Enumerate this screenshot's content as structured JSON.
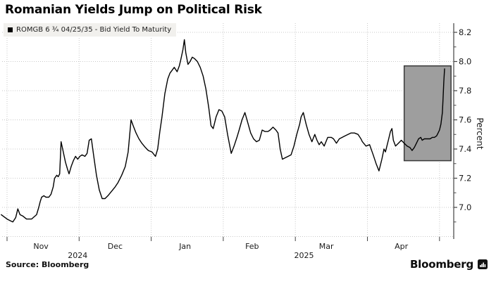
{
  "header": {
    "title": "Romanian Yields Jump on Political Risk"
  },
  "legend": {
    "swatch_color": "#000000",
    "label": "ROMGB 6 ¾ 04/25/35 - Bid Yield To Maturity"
  },
  "footer": {
    "source": "Source: Bloomberg",
    "brand_wordmark": "Bloomberg"
  },
  "chart_data": {
    "type": "line",
    "title": "Romanian Yields Jump on Political Risk",
    "ylabel": "Percent",
    "grid": "dotted",
    "legend_position": "top-left",
    "x_axis": {
      "unit": "months since 2024-11-01",
      "range_mu": [
        -0.08,
        6.2
      ],
      "month_boundary_ticks_mu": [
        0,
        1,
        2,
        3,
        4,
        5,
        6
      ],
      "month_labels": [
        {
          "label": "Nov",
          "mu": 0.47
        },
        {
          "label": "Dec",
          "mu": 1.5
        },
        {
          "label": "Jan",
          "mu": 2.47
        },
        {
          "label": "Feb",
          "mu": 3.4
        },
        {
          "label": "Mar",
          "mu": 4.43
        },
        {
          "label": "Apr",
          "mu": 5.47
        }
      ],
      "year_labels": [
        {
          "label": "2024",
          "mu": 0.98
        },
        {
          "label": "2025",
          "mu": 4.12
        }
      ]
    },
    "y_axis": {
      "label": "Percent",
      "side": "right",
      "range": [
        6.79,
        8.26
      ],
      "labeled_ticks": [
        8.2,
        8.0,
        7.8,
        7.6,
        7.4,
        7.2,
        7.0
      ],
      "minor_ticks": [
        8.1,
        7.9,
        7.7,
        7.5,
        7.3,
        7.1,
        6.9
      ],
      "gridline_values": [
        8.2,
        8.0,
        7.8,
        7.6,
        7.4,
        7.2,
        7.0,
        6.8
      ]
    },
    "highlight_box": {
      "x0_mu": 5.51,
      "x1_mu": 6.16,
      "y0": 7.32,
      "y1": 7.97,
      "fill": "#9e9e9e",
      "stroke": "#3a3a3a"
    },
    "colors": {
      "line": "#000000",
      "grid": "#c9c9c9",
      "axis": "#444444",
      "text": "#1a1a1a",
      "legend_bg": "#f1f0ed"
    },
    "series": [
      {
        "name": "ROMGB 6 ¾ 04/25/35 - Bid Yield To Maturity",
        "color": "#000000",
        "points": [
          [
            -0.08,
            6.95
          ],
          [
            0.0,
            6.92
          ],
          [
            0.04,
            6.91
          ],
          [
            0.08,
            6.9
          ],
          [
            0.12,
            6.93
          ],
          [
            0.15,
            6.99
          ],
          [
            0.18,
            6.95
          ],
          [
            0.22,
            6.94
          ],
          [
            0.27,
            6.92
          ],
          [
            0.34,
            6.92
          ],
          [
            0.41,
            6.95
          ],
          [
            0.44,
            7.0
          ],
          [
            0.46,
            7.04
          ],
          [
            0.48,
            7.07
          ],
          [
            0.51,
            7.08
          ],
          [
            0.54,
            7.07
          ],
          [
            0.58,
            7.07
          ],
          [
            0.61,
            7.09
          ],
          [
            0.64,
            7.14
          ],
          [
            0.66,
            7.2
          ],
          [
            0.69,
            7.22
          ],
          [
            0.71,
            7.21
          ],
          [
            0.73,
            7.23
          ],
          [
            0.75,
            7.45
          ],
          [
            0.78,
            7.38
          ],
          [
            0.81,
            7.31
          ],
          [
            0.84,
            7.26
          ],
          [
            0.86,
            7.23
          ],
          [
            0.89,
            7.28
          ],
          [
            0.92,
            7.32
          ],
          [
            0.95,
            7.35
          ],
          [
            0.98,
            7.33
          ],
          [
            1.01,
            7.35
          ],
          [
            1.04,
            7.36
          ],
          [
            1.08,
            7.35
          ],
          [
            1.11,
            7.37
          ],
          [
            1.14,
            7.46
          ],
          [
            1.17,
            7.47
          ],
          [
            1.2,
            7.36
          ],
          [
            1.24,
            7.22
          ],
          [
            1.28,
            7.12
          ],
          [
            1.32,
            7.06
          ],
          [
            1.36,
            7.06
          ],
          [
            1.4,
            7.08
          ],
          [
            1.45,
            7.11
          ],
          [
            1.5,
            7.14
          ],
          [
            1.54,
            7.17
          ],
          [
            1.59,
            7.22
          ],
          [
            1.64,
            7.28
          ],
          [
            1.68,
            7.38
          ],
          [
            1.72,
            7.6
          ],
          [
            1.75,
            7.56
          ],
          [
            1.79,
            7.51
          ],
          [
            1.83,
            7.47
          ],
          [
            1.87,
            7.44
          ],
          [
            1.92,
            7.41
          ],
          [
            1.96,
            7.39
          ],
          [
            2.01,
            7.38
          ],
          [
            2.06,
            7.35
          ],
          [
            2.09,
            7.4
          ],
          [
            2.12,
            7.52
          ],
          [
            2.15,
            7.62
          ],
          [
            2.19,
            7.78
          ],
          [
            2.23,
            7.88
          ],
          [
            2.26,
            7.92
          ],
          [
            2.29,
            7.94
          ],
          [
            2.32,
            7.96
          ],
          [
            2.36,
            7.93
          ],
          [
            2.39,
            7.97
          ],
          [
            2.41,
            8.01
          ],
          [
            2.44,
            8.08
          ],
          [
            2.46,
            8.15
          ],
          [
            2.48,
            8.06
          ],
          [
            2.51,
            7.98
          ],
          [
            2.54,
            8.0
          ],
          [
            2.57,
            8.03
          ],
          [
            2.6,
            8.02
          ],
          [
            2.64,
            8.0
          ],
          [
            2.68,
            7.96
          ],
          [
            2.72,
            7.9
          ],
          [
            2.76,
            7.81
          ],
          [
            2.8,
            7.68
          ],
          [
            2.83,
            7.56
          ],
          [
            2.86,
            7.54
          ],
          [
            2.9,
            7.62
          ],
          [
            2.94,
            7.67
          ],
          [
            2.98,
            7.66
          ],
          [
            3.02,
            7.62
          ],
          [
            3.06,
            7.5
          ],
          [
            3.11,
            7.37
          ],
          [
            3.15,
            7.42
          ],
          [
            3.19,
            7.48
          ],
          [
            3.22,
            7.53
          ],
          [
            3.26,
            7.6
          ],
          [
            3.3,
            7.65
          ],
          [
            3.34,
            7.58
          ],
          [
            3.38,
            7.51
          ],
          [
            3.42,
            7.47
          ],
          [
            3.46,
            7.45
          ],
          [
            3.5,
            7.46
          ],
          [
            3.54,
            7.53
          ],
          [
            3.58,
            7.52
          ],
          [
            3.62,
            7.52
          ],
          [
            3.65,
            7.53
          ],
          [
            3.69,
            7.55
          ],
          [
            3.73,
            7.53
          ],
          [
            3.76,
            7.51
          ],
          [
            3.79,
            7.4
          ],
          [
            3.82,
            7.33
          ],
          [
            3.86,
            7.34
          ],
          [
            3.9,
            7.35
          ],
          [
            3.94,
            7.36
          ],
          [
            3.98,
            7.42
          ],
          [
            4.02,
            7.5
          ],
          [
            4.06,
            7.57
          ],
          [
            4.08,
            7.62
          ],
          [
            4.11,
            7.65
          ],
          [
            4.15,
            7.57
          ],
          [
            4.19,
            7.5
          ],
          [
            4.23,
            7.45
          ],
          [
            4.27,
            7.5
          ],
          [
            4.3,
            7.46
          ],
          [
            4.33,
            7.43
          ],
          [
            4.36,
            7.45
          ],
          [
            4.4,
            7.42
          ],
          [
            4.45,
            7.48
          ],
          [
            4.5,
            7.48
          ],
          [
            4.53,
            7.47
          ],
          [
            4.57,
            7.44
          ],
          [
            4.61,
            7.47
          ],
          [
            4.65,
            7.48
          ],
          [
            4.69,
            7.49
          ],
          [
            4.73,
            7.5
          ],
          [
            4.77,
            7.51
          ],
          [
            4.82,
            7.51
          ],
          [
            4.87,
            7.5
          ],
          [
            4.91,
            7.47
          ],
          [
            4.93,
            7.45
          ],
          [
            4.98,
            7.42
          ],
          [
            5.03,
            7.43
          ],
          [
            5.08,
            7.36
          ],
          [
            5.12,
            7.3
          ],
          [
            5.16,
            7.25
          ],
          [
            5.2,
            7.33
          ],
          [
            5.23,
            7.4
          ],
          [
            5.25,
            7.38
          ],
          [
            5.29,
            7.46
          ],
          [
            5.32,
            7.52
          ],
          [
            5.34,
            7.54
          ],
          [
            5.36,
            7.46
          ],
          [
            5.39,
            7.42
          ],
          [
            5.43,
            7.44
          ],
          [
            5.47,
            7.46
          ],
          [
            5.51,
            7.44
          ],
          [
            5.55,
            7.42
          ],
          [
            5.59,
            7.41
          ],
          [
            5.62,
            7.39
          ],
          [
            5.65,
            7.41
          ],
          [
            5.68,
            7.44
          ],
          [
            5.71,
            7.47
          ],
          [
            5.74,
            7.48
          ],
          [
            5.76,
            7.46
          ],
          [
            5.79,
            7.47
          ],
          [
            5.83,
            7.47
          ],
          [
            5.87,
            7.47
          ],
          [
            5.9,
            7.48
          ],
          [
            5.93,
            7.48
          ],
          [
            5.96,
            7.49
          ],
          [
            5.98,
            7.51
          ],
          [
            6.0,
            7.53
          ],
          [
            6.02,
            7.57
          ],
          [
            6.04,
            7.65
          ],
          [
            6.05,
            7.75
          ],
          [
            6.06,
            7.86
          ],
          [
            6.07,
            7.95
          ]
        ]
      }
    ]
  }
}
